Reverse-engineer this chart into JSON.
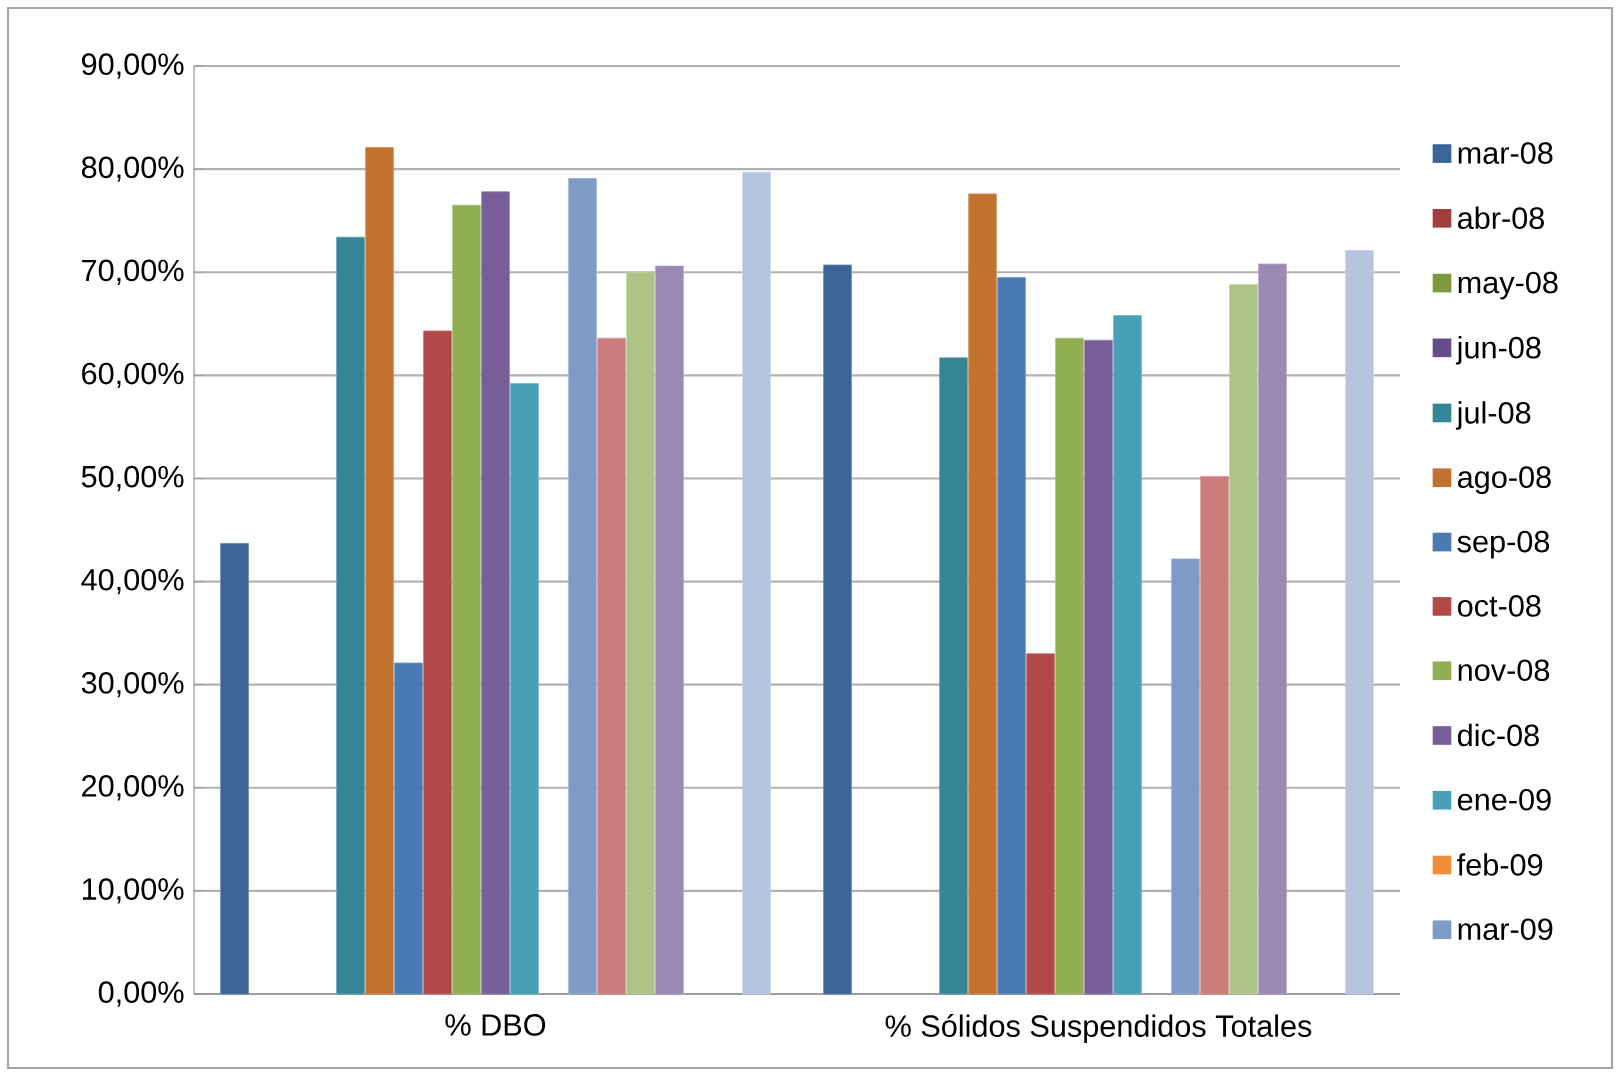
{
  "chart_data": {
    "type": "bar",
    "categories": [
      "% DBO",
      "% Sólidos Suspendidos Totales"
    ],
    "series": [
      {
        "name": "mar-08",
        "color": "#3c6496",
        "values": [
          43.7,
          70.7
        ]
      },
      {
        "name": "abr-08",
        "color": "#a0403e",
        "values": [
          null,
          null
        ]
      },
      {
        "name": "may-08",
        "color": "#7e9a3e",
        "values": [
          null,
          null
        ]
      },
      {
        "name": "jun-08",
        "color": "#664d85",
        "values": [
          null,
          null
        ]
      },
      {
        "name": "jul-08",
        "color": "#358596",
        "values": [
          73.4,
          61.7
        ]
      },
      {
        "name": "ago-08",
        "color": "#c2722f",
        "values": [
          82.1,
          77.6
        ]
      },
      {
        "name": "sep-08",
        "color": "#4a7ab2",
        "values": [
          32.1,
          69.5
        ]
      },
      {
        "name": "oct-08",
        "color": "#b14a48",
        "values": [
          64.3,
          33.0
        ]
      },
      {
        "name": "nov-08",
        "color": "#91ae52",
        "values": [
          76.5,
          63.6
        ]
      },
      {
        "name": "dic-08",
        "color": "#775e98",
        "values": [
          77.8,
          63.4
        ]
      },
      {
        "name": "ene-09",
        "color": "#47a0b7",
        "values": [
          59.2,
          65.8
        ]
      },
      {
        "name": "feb-09",
        "color": "#f08d3b",
        "values": [
          null,
          null
        ]
      },
      {
        "name": "mar-09",
        "color": "#7e9bc8",
        "values": [
          79.1,
          42.2
        ]
      },
      {
        "color": "#c97c7a",
        "values": [
          63.6,
          50.2
        ]
      },
      {
        "color": "#adc486",
        "values": [
          70.0,
          68.8
        ]
      },
      {
        "color": "#9a89b5",
        "values": [
          70.6,
          70.8
        ]
      },
      {
        "color": "#78b9cc",
        "values": [
          null,
          null
        ]
      },
      {
        "color": "#f9ab78",
        "values": [
          null,
          null
        ]
      },
      {
        "color": "#b5c4df",
        "values": [
          79.7,
          72.1
        ]
      }
    ],
    "ylim": [
      0,
      90
    ],
    "yticks": [
      {
        "value": 0,
        "label": "0,00%"
      },
      {
        "value": 10,
        "label": "10,00%"
      },
      {
        "value": 20,
        "label": "20,00%"
      },
      {
        "value": 30,
        "label": "30,00%"
      },
      {
        "value": 40,
        "label": "40,00%"
      },
      {
        "value": 50,
        "label": "50,00%"
      },
      {
        "value": 60,
        "label": "60,00%"
      },
      {
        "value": 70,
        "label": "70,00%"
      },
      {
        "value": 80,
        "label": "80,00%"
      },
      {
        "value": 90,
        "label": "90,00%"
      }
    ],
    "grid": "y",
    "legend": "right"
  }
}
